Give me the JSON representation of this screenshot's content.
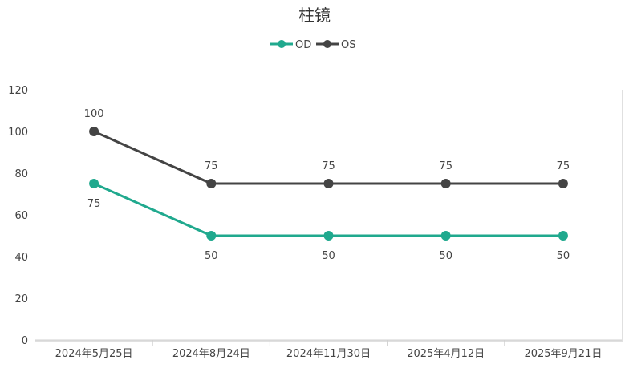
{
  "chart_data": {
    "type": "line",
    "title": "柱镜",
    "categories": [
      "2024年5月25日",
      "2024年8月24日",
      "2024年11月30日",
      "2025年4月12日",
      "2025年9月21日"
    ],
    "series": [
      {
        "name": "OD",
        "values": [
          75,
          50,
          50,
          50,
          50
        ],
        "color": "#20a98e",
        "label_position": "below"
      },
      {
        "name": "OS",
        "values": [
          100,
          75,
          75,
          75,
          75
        ],
        "color": "#444444",
        "label_position": "above"
      }
    ],
    "y_ticks": [
      "0",
      "20",
      "40",
      "60",
      "80",
      "100",
      "120"
    ],
    "ylim": [
      0,
      120
    ],
    "grid": false,
    "legend_position": "top-center"
  }
}
